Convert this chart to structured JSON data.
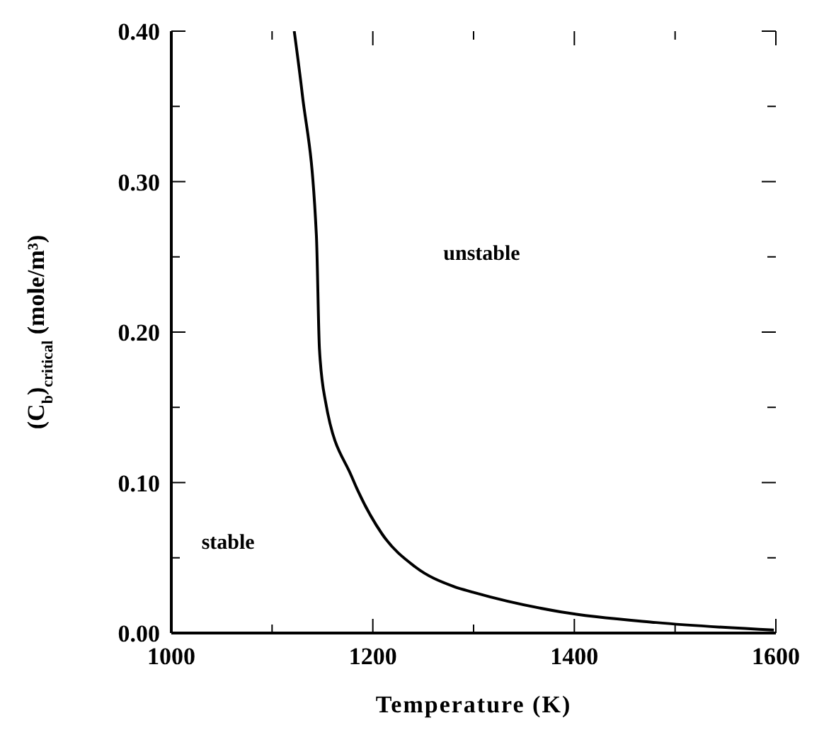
{
  "chart_data": {
    "type": "line",
    "xlabel": "Temperature (K)",
    "ylabel": "(C$_{b}$)$_{critical}$   (mole/m³)",
    "x": [
      1122,
      1130,
      1144,
      1147,
      1153,
      1179,
      1209,
      1242,
      1280,
      1300,
      1387,
      1481,
      1598
    ],
    "series": [
      {
        "color": "#000000",
        "values": [
          0.4,
          0.358,
          0.264,
          0.189,
          0.154,
          0.104,
          0.066,
          0.044,
          0.031,
          0.027,
          0.014,
          0.007,
          0.002
        ]
      }
    ],
    "xlim": [
      1000,
      1600
    ],
    "ylim": [
      0,
      0.4
    ],
    "xticks": [
      1000,
      {
        "value": 1100,
        "label": null
      },
      1200,
      {
        "value": 1300,
        "label": null
      },
      1400,
      {
        "value": 1500,
        "label": null
      },
      1600
    ],
    "yticks": [
      {
        "value": 0,
        "label": "0.00"
      },
      {
        "value": 0.05,
        "label": null
      },
      {
        "value": 0.1,
        "label": "0.10"
      },
      {
        "value": 0.15,
        "label": null
      },
      {
        "value": 0.2,
        "label": "0.20"
      },
      {
        "value": 0.25,
        "label": null
      },
      {
        "value": 0.3,
        "label": "0.30"
      },
      {
        "value": 0.35,
        "label": null
      },
      {
        "value": 0.4,
        "label": "0.40"
      }
    ],
    "annotations": [
      "unstable",
      "stable"
    ],
    "grid": false,
    "legend": false,
    "marker": "none",
    "line_style": "solid"
  }
}
